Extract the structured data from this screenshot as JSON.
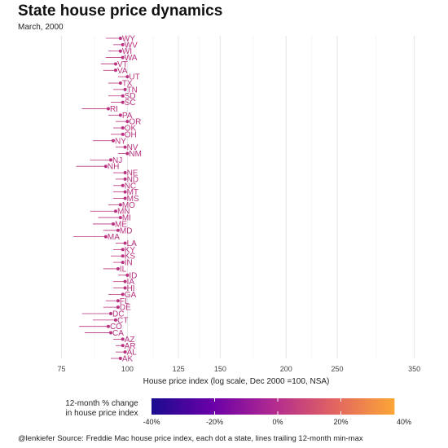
{
  "title": "State house price dynamics",
  "subtitle": "March, 2000",
  "caption": "@lenkiefer Source: Freddie Mac house price index, each dot a state, lines trailing 12-month min-max",
  "legend": {
    "title_line1": "12-month % change",
    "title_line2": "in house price index",
    "ticks": [
      "-40%",
      "-20%",
      "0%",
      "20%",
      "40%"
    ],
    "range": [
      -40,
      40
    ],
    "bar_range": [
      -40,
      37
    ],
    "colors": [
      "#1b0c8f",
      "#6a00a8",
      "#b12a90",
      "#e16462",
      "#fca636"
    ]
  },
  "chart_data": {
    "type": "scatter",
    "title": "State house price dynamics",
    "subtitle": "March, 2000",
    "xlabel": "House price index (log scale, Dec 2000 =100, NSA)",
    "ylabel": "",
    "x_scale": "log",
    "xlim": [
      62,
      375
    ],
    "x_ticks": [
      75,
      100,
      125,
      150,
      200,
      250,
      350
    ],
    "x_tick_labels": [
      "75",
      "100",
      "125",
      "150",
      "200",
      "250",
      "350"
    ],
    "grid": true,
    "legend_position": "bottom",
    "dot_color": "#b8327f",
    "rows": [
      {
        "state": "WY",
        "value": 97,
        "min": 91
      },
      {
        "state": "WV",
        "value": 98,
        "min": 94
      },
      {
        "state": "WI",
        "value": 97,
        "min": 92
      },
      {
        "state": "WA",
        "value": 98,
        "min": 91
      },
      {
        "state": "VT",
        "value": 95,
        "min": 89
      },
      {
        "state": "VA",
        "value": 95,
        "min": 90
      },
      {
        "state": "UT",
        "value": 100,
        "min": 96
      },
      {
        "state": "TX",
        "value": 97,
        "min": 92
      },
      {
        "state": "TN",
        "value": 99,
        "min": 94
      },
      {
        "state": "SD",
        "value": 98,
        "min": 92
      },
      {
        "state": "SC",
        "value": 98,
        "min": 93
      },
      {
        "state": "RI",
        "value": 92,
        "min": 82
      },
      {
        "state": "PA",
        "value": 97,
        "min": 92
      },
      {
        "state": "OR",
        "value": 100,
        "min": 95
      },
      {
        "state": "OK",
        "value": 98,
        "min": 94
      },
      {
        "state": "OH",
        "value": 98,
        "min": 93
      },
      {
        "state": "NY",
        "value": 94,
        "min": 86
      },
      {
        "state": "NV",
        "value": 99,
        "min": 95
      },
      {
        "state": "NM",
        "value": 100,
        "min": 96
      },
      {
        "state": "NJ",
        "value": 93,
        "min": 85
      },
      {
        "state": "NH",
        "value": 91,
        "min": 80
      },
      {
        "state": "NE",
        "value": 99,
        "min": 94
      },
      {
        "state": "ND",
        "value": 99,
        "min": 95
      },
      {
        "state": "NC",
        "value": 98,
        "min": 94
      },
      {
        "state": "MT",
        "value": 99,
        "min": 94
      },
      {
        "state": "MS",
        "value": 99,
        "min": 94
      },
      {
        "state": "MO",
        "value": 97,
        "min": 92
      },
      {
        "state": "MN",
        "value": 95,
        "min": 85
      },
      {
        "state": "MI",
        "value": 97,
        "min": 88
      },
      {
        "state": "ME",
        "value": 94,
        "min": 86
      },
      {
        "state": "MD",
        "value": 96,
        "min": 90
      },
      {
        "state": "MA",
        "value": 91,
        "min": 79
      },
      {
        "state": "LA",
        "value": 99,
        "min": 95
      },
      {
        "state": "KY",
        "value": 98,
        "min": 94
      },
      {
        "state": "KS",
        "value": 98,
        "min": 93
      },
      {
        "state": "IN",
        "value": 98,
        "min": 94
      },
      {
        "state": "IL",
        "value": 96,
        "min": 90
      },
      {
        "state": "ID",
        "value": 100,
        "min": 96
      },
      {
        "state": "IA",
        "value": 99,
        "min": 94
      },
      {
        "state": "HI",
        "value": 99,
        "min": 94
      },
      {
        "state": "GA",
        "value": 98,
        "min": 92
      },
      {
        "state": "FL",
        "value": 96,
        "min": 91
      },
      {
        "state": "DE",
        "value": 96,
        "min": 90
      },
      {
        "state": "DC",
        "value": 93,
        "min": 82
      },
      {
        "state": "CT",
        "value": 95,
        "min": 86
      },
      {
        "state": "CO",
        "value": 92,
        "min": 81
      },
      {
        "state": "CA",
        "value": 93,
        "min": 83
      },
      {
        "state": "AZ",
        "value": 98,
        "min": 94
      },
      {
        "state": "AR",
        "value": 98,
        "min": 95
      },
      {
        "state": "AL",
        "value": 99,
        "min": 95
      },
      {
        "state": "AK",
        "value": 97,
        "min": 93
      }
    ]
  }
}
